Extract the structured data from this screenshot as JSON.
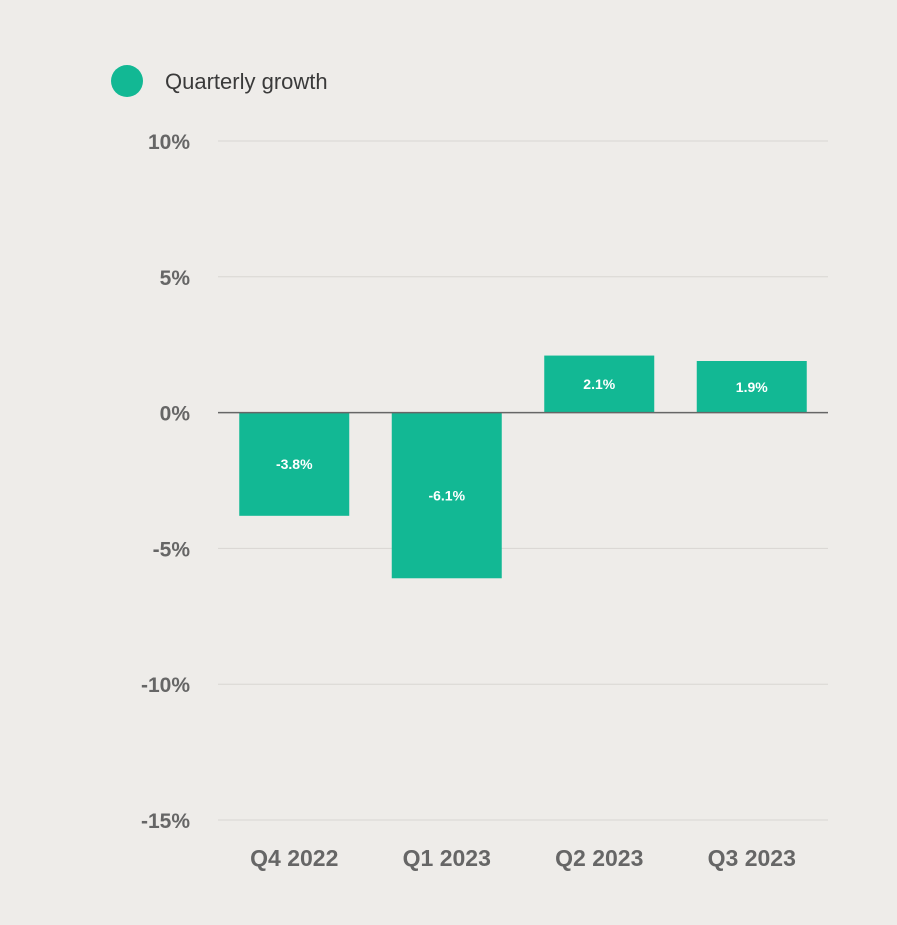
{
  "chart_data": {
    "type": "bar",
    "categories": [
      "Q4 2022",
      "Q1 2023",
      "Q2 2023",
      "Q3 2023"
    ],
    "series": [
      {
        "name": "Quarterly growth",
        "values": [
          -3.8,
          -6.1,
          2.1,
          1.9
        ],
        "color": "#12b894"
      }
    ],
    "data_labels": [
      "-3.8%",
      "-6.1%",
      "2.1%",
      "1.9%"
    ],
    "y_ticks": [
      10,
      5,
      0,
      -5,
      -10,
      -15
    ],
    "y_tick_labels": [
      "10%",
      "5%",
      "0%",
      "-5%",
      "-10%",
      "-15%"
    ],
    "ylim": [
      -15,
      10
    ],
    "grid": true,
    "legend_position": "top-left",
    "title": "",
    "xlabel": "",
    "ylabel": ""
  }
}
